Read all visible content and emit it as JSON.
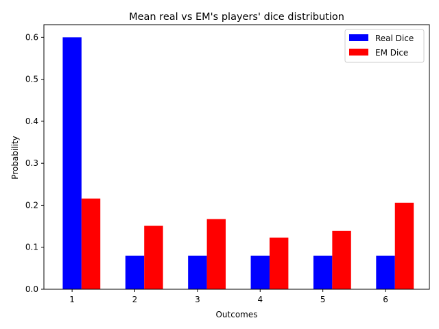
{
  "chart_data": {
    "type": "bar",
    "title": "Mean real vs EM's players' dice distribution",
    "xlabel": "Outcomes",
    "ylabel": "Probability",
    "categories": [
      "1",
      "2",
      "3",
      "4",
      "5",
      "6"
    ],
    "ylim": [
      0,
      0.63
    ],
    "yticks": [
      "0.0",
      "0.1",
      "0.2",
      "0.3",
      "0.4",
      "0.5",
      "0.6"
    ],
    "grid": false,
    "legend_position": "top-right",
    "series": [
      {
        "name": "Real Dice",
        "color": "#0000ff",
        "values": [
          0.6,
          0.08,
          0.08,
          0.08,
          0.08,
          0.08
        ]
      },
      {
        "name": "EM Dice",
        "color": "#ff0000",
        "values": [
          0.216,
          0.151,
          0.167,
          0.123,
          0.139,
          0.206
        ]
      }
    ]
  }
}
